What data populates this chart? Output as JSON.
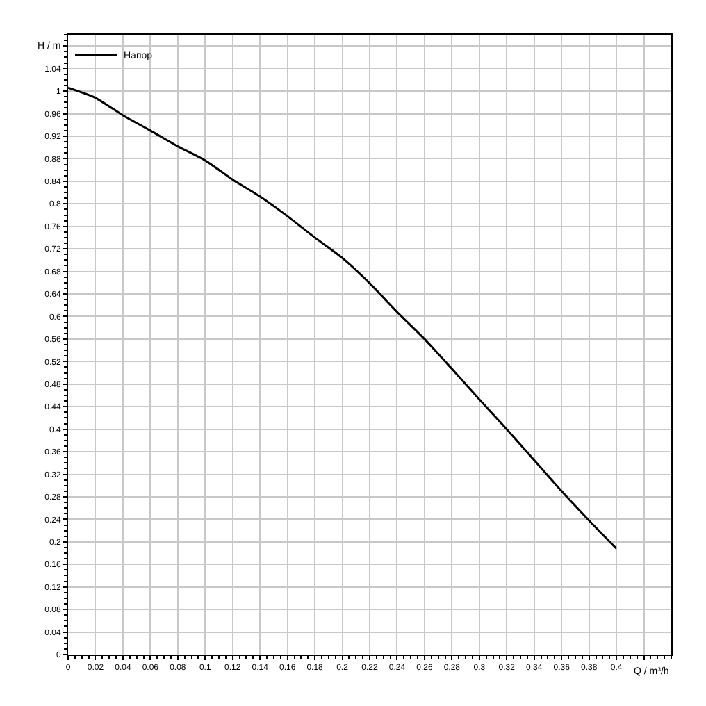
{
  "chart_data": {
    "type": "line",
    "xlabel": "Q / m³/h",
    "ylabel": "H / m",
    "x": [
      0,
      0.02,
      0.04,
      0.06,
      0.08,
      0.1,
      0.12,
      0.14,
      0.16,
      0.18,
      0.2,
      0.22,
      0.24,
      0.26,
      0.28,
      0.3,
      0.32,
      0.34,
      0.36,
      0.38,
      0.4
    ],
    "series": [
      {
        "name": "Напор",
        "color": "#000000",
        "values": [
          1.006,
          0.988,
          0.957,
          0.93,
          0.902,
          0.877,
          0.843,
          0.813,
          0.778,
          0.74,
          0.704,
          0.659,
          0.608,
          0.56,
          0.507,
          0.453,
          0.4,
          0.345,
          0.29,
          0.238,
          0.188
        ]
      }
    ],
    "xlim": [
      0,
      0.44
    ],
    "ylim": [
      0,
      1.1
    ],
    "xticks": [
      0,
      0.02,
      0.04,
      0.06,
      0.08,
      0.1,
      0.12,
      0.14,
      0.16,
      0.18,
      0.2,
      0.22,
      0.24,
      0.26,
      0.28,
      0.3,
      0.32,
      0.34,
      0.36,
      0.38,
      0.4,
      {
        "value": 0.42,
        "label": null
      }
    ],
    "yticks": [
      0,
      0.04,
      0.08,
      0.12,
      0.16,
      0.2,
      0.24,
      0.28,
      0.32,
      0.36,
      0.4,
      0.44,
      0.48,
      0.52,
      0.56,
      0.6,
      0.64,
      0.68,
      0.72,
      0.76,
      0.8,
      0.84,
      0.88,
      0.92,
      0.96,
      1,
      1.04,
      {
        "value": 1.08,
        "label": null
      }
    ],
    "grid": true,
    "legend": "top left",
    "line_style": "solid",
    "marker": "none"
  }
}
